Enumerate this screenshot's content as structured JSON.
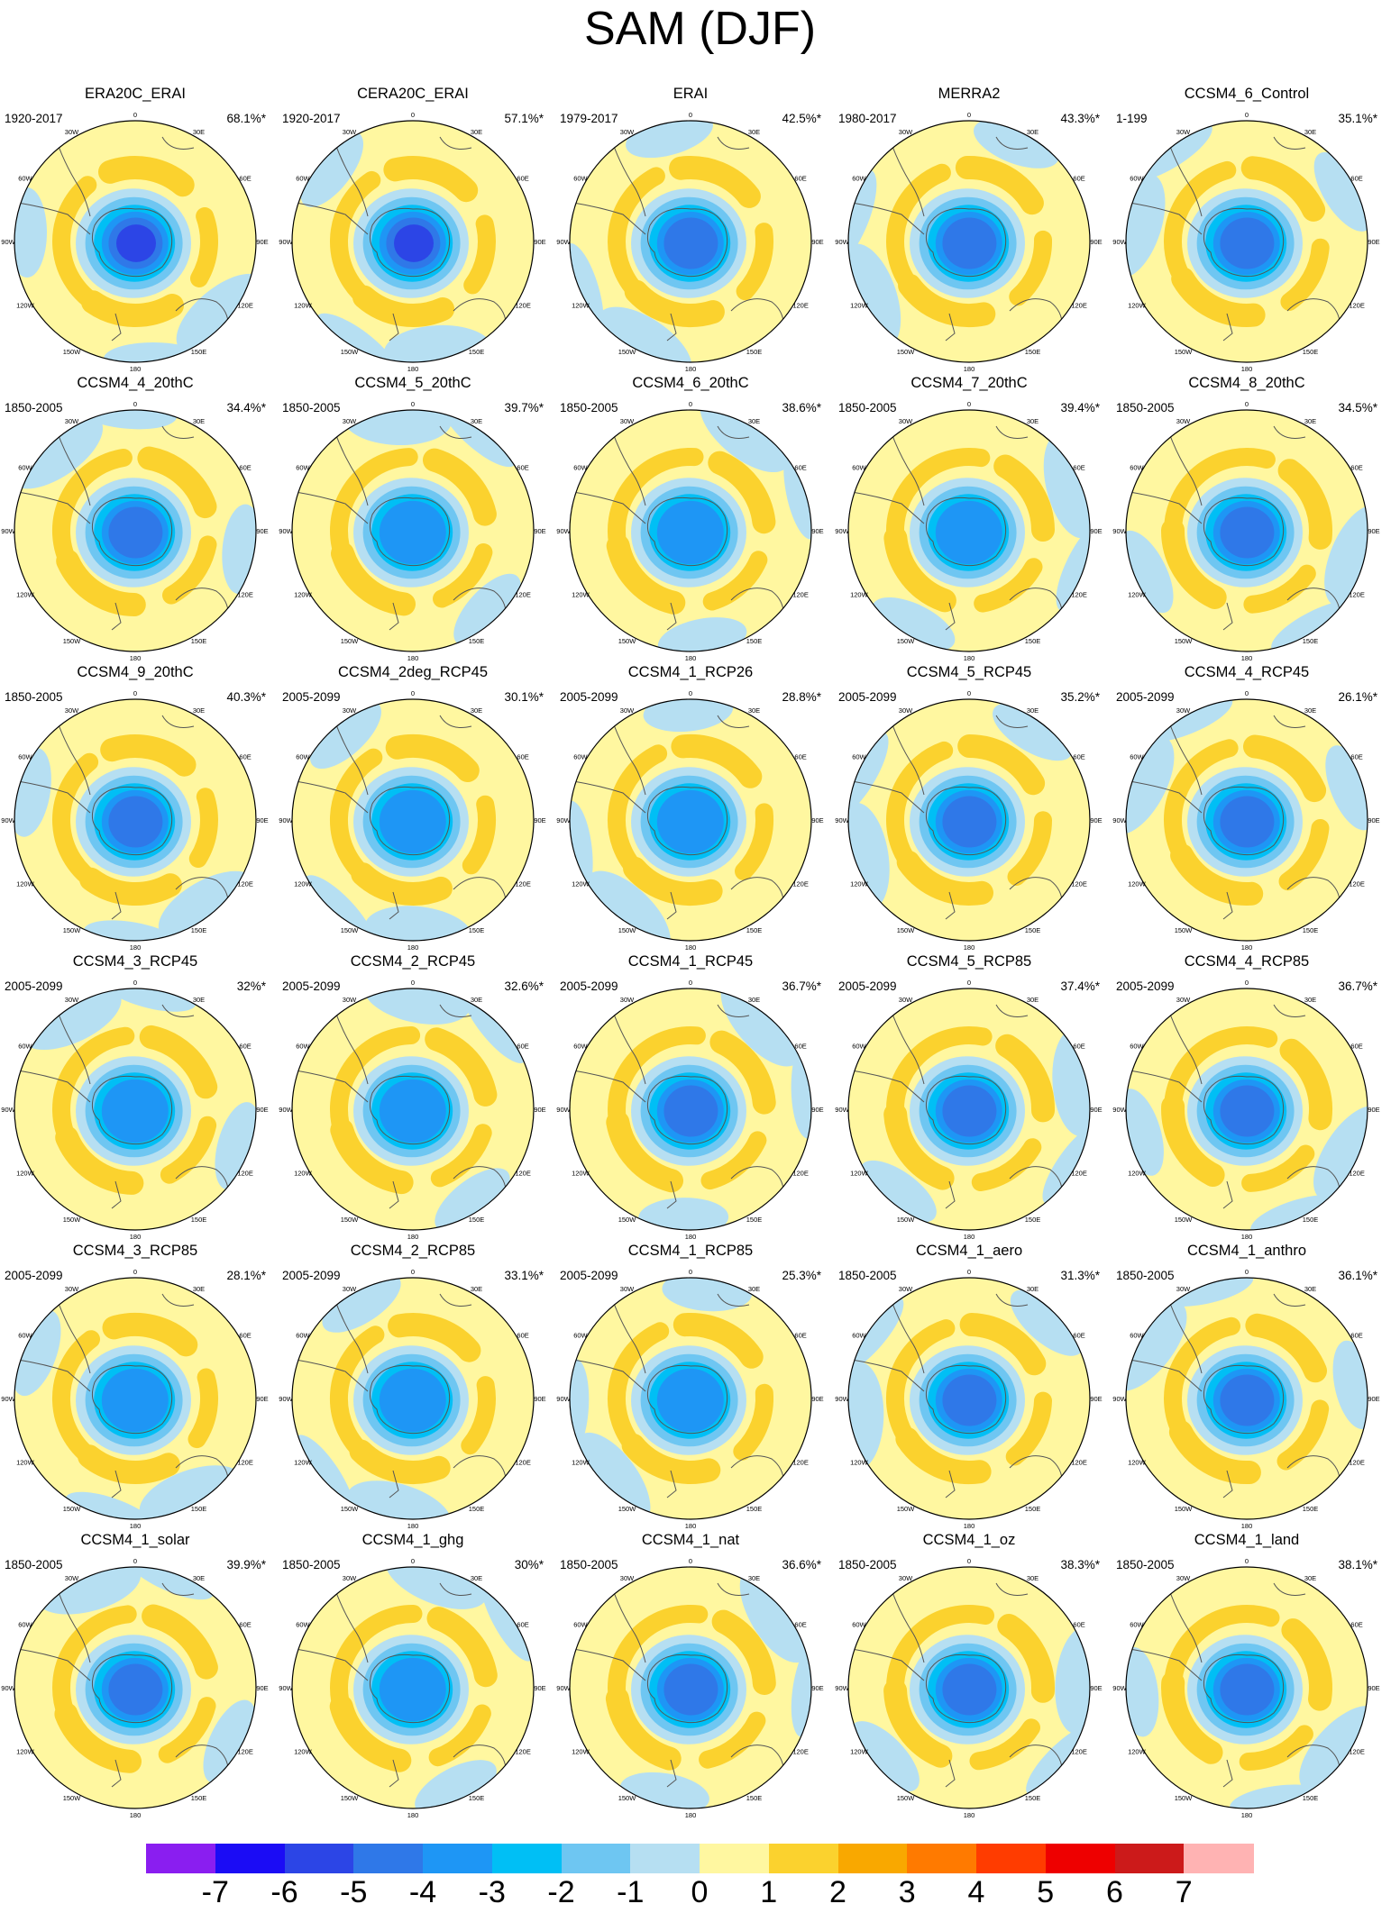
{
  "title": "SAM (DJF)",
  "lon_labels": [
    "0",
    "30E",
    "60E",
    "90E",
    "120E",
    "150E",
    "180",
    "150W",
    "120W",
    "90W",
    "60W",
    "30W"
  ],
  "panels": [
    {
      "name": "ERA20C_ERAI",
      "period": "1920-2017",
      "pct": "68.1%*",
      "icon": "polar-map-icon"
    },
    {
      "name": "CERA20C_ERAI",
      "period": "1920-2017",
      "pct": "57.1%*",
      "icon": "polar-map-icon"
    },
    {
      "name": "ERAI",
      "period": "1979-2017",
      "pct": "42.5%*",
      "icon": "polar-map-icon"
    },
    {
      "name": "MERRA2",
      "period": "1980-2017",
      "pct": "43.3%*",
      "icon": "polar-map-icon"
    },
    {
      "name": "CCSM4_6_Control",
      "period": "1-199",
      "pct": "35.1%*",
      "icon": "polar-map-icon"
    },
    {
      "name": "CCSM4_4_20thC",
      "period": "1850-2005",
      "pct": "34.4%*",
      "icon": "polar-map-icon"
    },
    {
      "name": "CCSM4_5_20thC",
      "period": "1850-2005",
      "pct": "39.7%*",
      "icon": "polar-map-icon"
    },
    {
      "name": "CCSM4_6_20thC",
      "period": "1850-2005",
      "pct": "38.6%*",
      "icon": "polar-map-icon"
    },
    {
      "name": "CCSM4_7_20thC",
      "period": "1850-2005",
      "pct": "39.4%*",
      "icon": "polar-map-icon"
    },
    {
      "name": "CCSM4_8_20thC",
      "period": "1850-2005",
      "pct": "34.5%*",
      "icon": "polar-map-icon"
    },
    {
      "name": "CCSM4_9_20thC",
      "period": "1850-2005",
      "pct": "40.3%*",
      "icon": "polar-map-icon"
    },
    {
      "name": "CCSM4_2deg_RCP45",
      "period": "2005-2099",
      "pct": "30.1%*",
      "icon": "polar-map-icon"
    },
    {
      "name": "CCSM4_1_RCP26",
      "period": "2005-2099",
      "pct": "28.8%*",
      "icon": "polar-map-icon"
    },
    {
      "name": "CCSM4_5_RCP45",
      "period": "2005-2099",
      "pct": "35.2%*",
      "icon": "polar-map-icon"
    },
    {
      "name": "CCSM4_4_RCP45",
      "period": "2005-2099",
      "pct": "26.1%*",
      "icon": "polar-map-icon"
    },
    {
      "name": "CCSM4_3_RCP45",
      "period": "2005-2099",
      "pct": "32%*",
      "icon": "polar-map-icon"
    },
    {
      "name": "CCSM4_2_RCP45",
      "period": "2005-2099",
      "pct": "32.6%*",
      "icon": "polar-map-icon"
    },
    {
      "name": "CCSM4_1_RCP45",
      "period": "2005-2099",
      "pct": "36.7%*",
      "icon": "polar-map-icon"
    },
    {
      "name": "CCSM4_5_RCP85",
      "period": "2005-2099",
      "pct": "37.4%*",
      "icon": "polar-map-icon"
    },
    {
      "name": "CCSM4_4_RCP85",
      "period": "2005-2099",
      "pct": "36.7%*",
      "icon": "polar-map-icon"
    },
    {
      "name": "CCSM4_3_RCP85",
      "period": "2005-2099",
      "pct": "28.1%*",
      "icon": "polar-map-icon"
    },
    {
      "name": "CCSM4_2_RCP85",
      "period": "2005-2099",
      "pct": "33.1%*",
      "icon": "polar-map-icon"
    },
    {
      "name": "CCSM4_1_RCP85",
      "period": "2005-2099",
      "pct": "25.3%*",
      "icon": "polar-map-icon"
    },
    {
      "name": "CCSM4_1_aero",
      "period": "1850-2005",
      "pct": "31.3%*",
      "icon": "polar-map-icon"
    },
    {
      "name": "CCSM4_1_anthro",
      "period": "1850-2005",
      "pct": "36.1%*",
      "icon": "polar-map-icon"
    },
    {
      "name": "CCSM4_1_solar",
      "period": "1850-2005",
      "pct": "39.9%*",
      "icon": "polar-map-icon"
    },
    {
      "name": "CCSM4_1_ghg",
      "period": "1850-2005",
      "pct": "30%*",
      "icon": "polar-map-icon"
    },
    {
      "name": "CCSM4_1_nat",
      "period": "1850-2005",
      "pct": "36.6%*",
      "icon": "polar-map-icon"
    },
    {
      "name": "CCSM4_1_oz",
      "period": "1850-2005",
      "pct": "38.3%*",
      "icon": "polar-map-icon"
    },
    {
      "name": "CCSM4_1_land",
      "period": "1850-2005",
      "pct": "38.1%*",
      "icon": "polar-map-icon"
    }
  ],
  "colorbar": {
    "labels": [
      "-7",
      "-6",
      "-5",
      "-4",
      "-3",
      "-2",
      "-1",
      "0",
      "1",
      "2",
      "3",
      "4",
      "5",
      "6",
      "7"
    ],
    "colors": [
      "#8a1ef0",
      "#1b0cf5",
      "#2c45e6",
      "#2f78e8",
      "#1e96f5",
      "#00bff5",
      "#6ec6f2",
      "#b6dff2",
      "#fff7a0",
      "#fbd22e",
      "#f9a800",
      "#ff7a00",
      "#ff3c00",
      "#ee0000",
      "#cc1a1a",
      "#ffb3b3"
    ]
  }
}
